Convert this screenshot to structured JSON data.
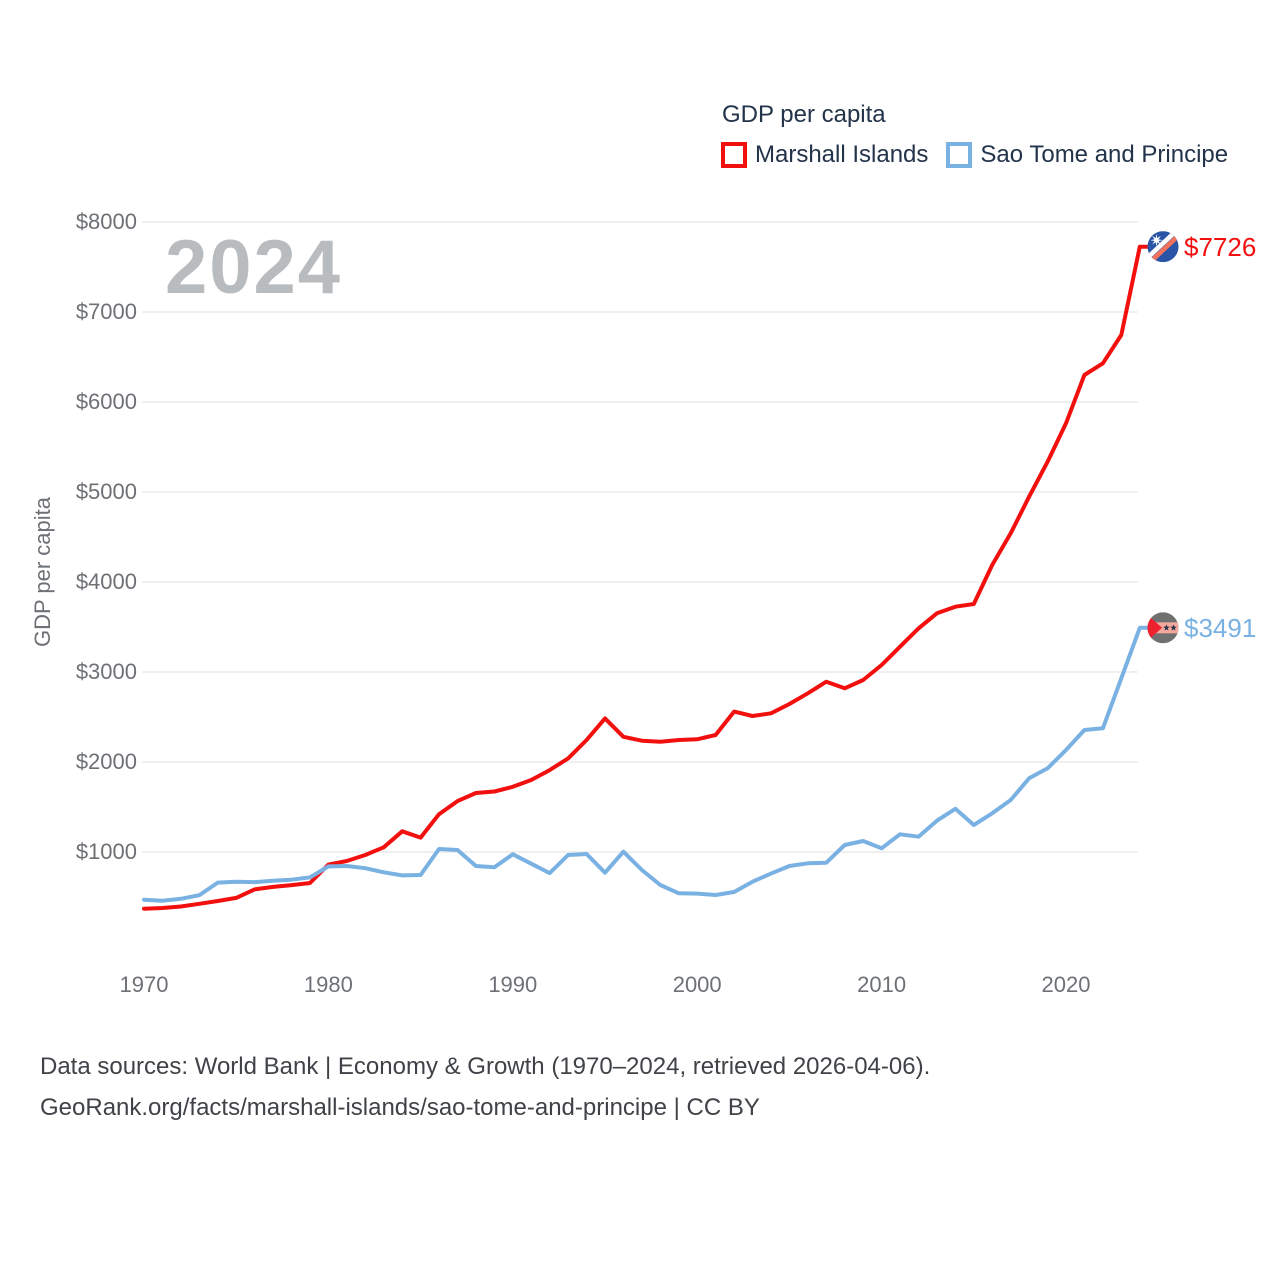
{
  "chart_data": {
    "type": "line",
    "title": "GDP per capita",
    "ylabel": "GDP per capita",
    "watermark": "2024",
    "grid": "horizontal",
    "grid_color": "#e8e8e8",
    "legend_position": "top-right",
    "ylim": [
      0,
      8250
    ],
    "x": [
      1970,
      1971,
      1972,
      1973,
      1974,
      1975,
      1976,
      1977,
      1978,
      1979,
      1980,
      1981,
      1982,
      1983,
      1984,
      1985,
      1986,
      1987,
      1988,
      1989,
      1990,
      1991,
      1992,
      1993,
      1994,
      1995,
      1996,
      1997,
      1998,
      1999,
      2000,
      2001,
      2002,
      2003,
      2004,
      2005,
      2006,
      2007,
      2008,
      2009,
      2010,
      2011,
      2012,
      2013,
      2014,
      2015,
      2016,
      2017,
      2018,
      2019,
      2020,
      2021,
      2022,
      2023,
      2024
    ],
    "series": [
      {
        "name": "Marshall Islands",
        "color": "#f2100f",
        "end_label": "$7726",
        "end_value": 7726,
        "flag": "marshall-islands",
        "values": [
          370,
          378,
          395,
          425,
          455,
          490,
          585,
          612,
          632,
          655,
          860,
          900,
          967,
          1052,
          1230,
          1160,
          1420,
          1565,
          1655,
          1672,
          1725,
          1800,
          1910,
          2040,
          2245,
          2485,
          2280,
          2237,
          2226,
          2244,
          2252,
          2300,
          2560,
          2511,
          2541,
          2644,
          2763,
          2892,
          2819,
          2911,
          3078,
          3281,
          3485,
          3652,
          3726,
          3756,
          4189,
          4541,
          4948,
          5337,
          5763,
          6300,
          6430,
          6744,
          7726
        ]
      },
      {
        "name": "Sao Tome and Principe",
        "color": "#7ab1e3",
        "end_label": "$3491",
        "end_value": 3491,
        "flag": "sao-tome-and-principe",
        "values": [
          470,
          458,
          480,
          520,
          660,
          670,
          665,
          680,
          692,
          718,
          840,
          845,
          820,
          775,
          740,
          745,
          1033,
          1022,
          845,
          830,
          975,
          870,
          765,
          967,
          978,
          770,
          1003,
          800,
          633,
          541,
          538,
          522,
          555,
          670,
          760,
          844,
          874,
          881,
          1078,
          1122,
          1041,
          1197,
          1170,
          1348,
          1480,
          1300,
          1430,
          1578,
          1819,
          1930,
          2133,
          2356,
          2374,
          2930,
          3491
        ]
      }
    ],
    "yticks": [
      {
        "value": 1000,
        "label": "$1000"
      },
      {
        "value": 2000,
        "label": "$2000"
      },
      {
        "value": 3000,
        "label": "$3000"
      },
      {
        "value": 4000,
        "label": "$4000"
      },
      {
        "value": 5000,
        "label": "$5000"
      },
      {
        "value": 6000,
        "label": "$6000"
      },
      {
        "value": 7000,
        "label": "$7000"
      },
      {
        "value": 8000,
        "label": "$8000"
      }
    ],
    "xticks": [
      {
        "value": 1970,
        "label": "1970"
      },
      {
        "value": 1980,
        "label": "1980"
      },
      {
        "value": 1990,
        "label": "1990"
      },
      {
        "value": 2000,
        "label": "2000"
      },
      {
        "value": 2010,
        "label": "2010"
      },
      {
        "value": 2020,
        "label": "2020"
      }
    ],
    "flag_colors": {
      "marshall_blue": "#2a55a6",
      "marshall_stripe_orange": "#f4715c",
      "marshall_stripe_white": "#ffffff",
      "marshall_star": "#ffffff",
      "saotome_band_gray": "#6f7170",
      "saotome_band_middle": "#f4a89e",
      "saotome_triangle_red": "#ee2130",
      "saotome_star": "#26324a"
    },
    "text_colors": {
      "title": "#23334a",
      "ticks": "#6d7175",
      "watermark": "#b9bcbe",
      "footer": "#3f4347"
    }
  },
  "footer": {
    "line1": "Data sources: World Bank | Economy & Growth (1970–2024, retrieved 2026-04-06).",
    "line2": "GeoRank.org/facts/marshall-islands/sao-tome-and-principe | CC BY"
  }
}
